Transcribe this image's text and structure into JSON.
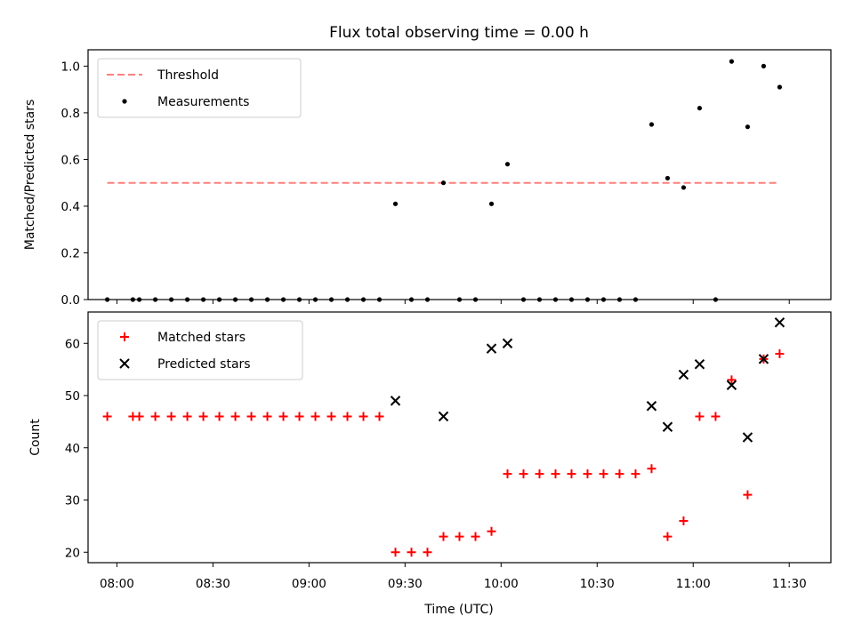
{
  "chart_data": {
    "type": "scatter",
    "title": "Flux total observing time = 0.00 h",
    "xlabel": "Time (UTC)",
    "x_ticks": [
      "08:00",
      "08:30",
      "09:00",
      "09:30",
      "10:00",
      "10:30",
      "11:00",
      "11:30"
    ],
    "x_range": [
      "07:51",
      "11:43"
    ],
    "panels": [
      {
        "ylabel": "Matched/Predicted stars",
        "ylim": [
          0,
          1.07
        ],
        "y_ticks": [
          "0.0",
          "0.2",
          "0.4",
          "0.6",
          "0.8",
          "1.0"
        ],
        "legend_position": "upper left",
        "series": [
          {
            "name": "Threshold",
            "style": "dashed line",
            "color": "#ff7f7f",
            "points": [
              {
                "x": "07:57",
                "y": 0.5
              },
              {
                "x": "11:27",
                "y": 0.5
              }
            ]
          },
          {
            "name": "Measurements",
            "style": "dot",
            "color": "#000000",
            "points": [
              {
                "x": "07:57",
                "y": 0.0
              },
              {
                "x": "08:05",
                "y": 0.0
              },
              {
                "x": "08:07",
                "y": 0.0
              },
              {
                "x": "08:12",
                "y": 0.0
              },
              {
                "x": "08:17",
                "y": 0.0
              },
              {
                "x": "08:22",
                "y": 0.0
              },
              {
                "x": "08:27",
                "y": 0.0
              },
              {
                "x": "08:32",
                "y": 0.0
              },
              {
                "x": "08:37",
                "y": 0.0
              },
              {
                "x": "08:42",
                "y": 0.0
              },
              {
                "x": "08:47",
                "y": 0.0
              },
              {
                "x": "08:52",
                "y": 0.0
              },
              {
                "x": "08:57",
                "y": 0.0
              },
              {
                "x": "09:02",
                "y": 0.0
              },
              {
                "x": "09:07",
                "y": 0.0
              },
              {
                "x": "09:12",
                "y": 0.0
              },
              {
                "x": "09:17",
                "y": 0.0
              },
              {
                "x": "09:22",
                "y": 0.0
              },
              {
                "x": "09:27",
                "y": 0.41
              },
              {
                "x": "09:32",
                "y": 0.0
              },
              {
                "x": "09:37",
                "y": 0.0
              },
              {
                "x": "09:42",
                "y": 0.5
              },
              {
                "x": "09:47",
                "y": 0.0
              },
              {
                "x": "09:52",
                "y": 0.0
              },
              {
                "x": "09:57",
                "y": 0.41
              },
              {
                "x": "10:02",
                "y": 0.58
              },
              {
                "x": "10:07",
                "y": 0.0
              },
              {
                "x": "10:12",
                "y": 0.0
              },
              {
                "x": "10:17",
                "y": 0.0
              },
              {
                "x": "10:22",
                "y": 0.0
              },
              {
                "x": "10:27",
                "y": 0.0
              },
              {
                "x": "10:32",
                "y": 0.0
              },
              {
                "x": "10:37",
                "y": 0.0
              },
              {
                "x": "10:42",
                "y": 0.0
              },
              {
                "x": "10:47",
                "y": 0.75
              },
              {
                "x": "10:52",
                "y": 0.52
              },
              {
                "x": "10:57",
                "y": 0.48
              },
              {
                "x": "11:02",
                "y": 0.82
              },
              {
                "x": "11:07",
                "y": 0.0
              },
              {
                "x": "11:12",
                "y": 1.02
              },
              {
                "x": "11:17",
                "y": 0.74
              },
              {
                "x": "11:22",
                "y": 1.0
              },
              {
                "x": "11:27",
                "y": 0.91
              }
            ]
          }
        ]
      },
      {
        "ylabel": "Count",
        "ylim": [
          18,
          66
        ],
        "y_ticks": [
          "20",
          "30",
          "40",
          "50",
          "60"
        ],
        "legend_position": "upper left",
        "series": [
          {
            "name": "Matched stars",
            "style": "plus",
            "color": "#ff0000",
            "points": [
              {
                "x": "07:57",
                "y": 46
              },
              {
                "x": "08:05",
                "y": 46
              },
              {
                "x": "08:07",
                "y": 46
              },
              {
                "x": "08:12",
                "y": 46
              },
              {
                "x": "08:17",
                "y": 46
              },
              {
                "x": "08:22",
                "y": 46
              },
              {
                "x": "08:27",
                "y": 46
              },
              {
                "x": "08:32",
                "y": 46
              },
              {
                "x": "08:37",
                "y": 46
              },
              {
                "x": "08:42",
                "y": 46
              },
              {
                "x": "08:47",
                "y": 46
              },
              {
                "x": "08:52",
                "y": 46
              },
              {
                "x": "08:57",
                "y": 46
              },
              {
                "x": "09:02",
                "y": 46
              },
              {
                "x": "09:07",
                "y": 46
              },
              {
                "x": "09:12",
                "y": 46
              },
              {
                "x": "09:17",
                "y": 46
              },
              {
                "x": "09:22",
                "y": 46
              },
              {
                "x": "09:27",
                "y": 20
              },
              {
                "x": "09:32",
                "y": 20
              },
              {
                "x": "09:37",
                "y": 20
              },
              {
                "x": "09:42",
                "y": 23
              },
              {
                "x": "09:47",
                "y": 23
              },
              {
                "x": "09:52",
                "y": 23
              },
              {
                "x": "09:57",
                "y": 24
              },
              {
                "x": "10:02",
                "y": 35
              },
              {
                "x": "10:07",
                "y": 35
              },
              {
                "x": "10:12",
                "y": 35
              },
              {
                "x": "10:17",
                "y": 35
              },
              {
                "x": "10:22",
                "y": 35
              },
              {
                "x": "10:27",
                "y": 35
              },
              {
                "x": "10:32",
                "y": 35
              },
              {
                "x": "10:37",
                "y": 35
              },
              {
                "x": "10:42",
                "y": 35
              },
              {
                "x": "10:47",
                "y": 36
              },
              {
                "x": "10:52",
                "y": 23
              },
              {
                "x": "10:57",
                "y": 26
              },
              {
                "x": "11:02",
                "y": 46
              },
              {
                "x": "11:07",
                "y": 46
              },
              {
                "x": "11:12",
                "y": 53
              },
              {
                "x": "11:17",
                "y": 31
              },
              {
                "x": "11:22",
                "y": 57
              },
              {
                "x": "11:27",
                "y": 58
              }
            ]
          },
          {
            "name": "Predicted stars",
            "style": "x",
            "color": "#000000",
            "points": [
              {
                "x": "09:27",
                "y": 49
              },
              {
                "x": "09:42",
                "y": 46
              },
              {
                "x": "09:57",
                "y": 59
              },
              {
                "x": "10:02",
                "y": 60
              },
              {
                "x": "10:47",
                "y": 48
              },
              {
                "x": "10:52",
                "y": 44
              },
              {
                "x": "10:57",
                "y": 54
              },
              {
                "x": "11:02",
                "y": 56
              },
              {
                "x": "11:12",
                "y": 52
              },
              {
                "x": "11:17",
                "y": 42
              },
              {
                "x": "11:22",
                "y": 57
              },
              {
                "x": "11:27",
                "y": 64
              }
            ]
          }
        ]
      }
    ]
  }
}
